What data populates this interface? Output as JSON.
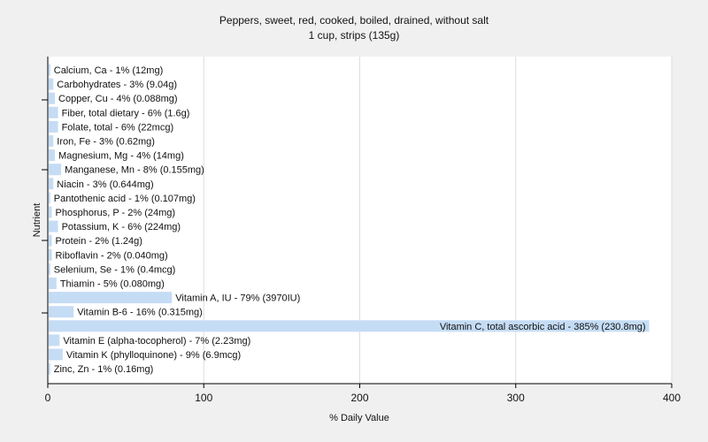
{
  "chart_data": {
    "type": "bar",
    "orientation": "horizontal",
    "title": "Peppers, sweet, red, cooked, boiled, drained, without salt",
    "subtitle": "1 cup, strips (135g)",
    "xlabel": "% Daily Value",
    "ylabel": "Nutrient",
    "xlim": [
      0,
      400
    ],
    "xticks": [
      0,
      100,
      200,
      300,
      400
    ],
    "grid": true,
    "bar_color": "#c5dcf5",
    "background": "#f0f0f0",
    "plot_background": "#ffffff",
    "categories": [
      "Calcium, Ca - 1% (12mg)",
      "Carbohydrates - 3% (9.04g)",
      "Copper, Cu - 4% (0.088mg)",
      "Fiber, total dietary - 6% (1.6g)",
      "Folate, total - 6% (22mcg)",
      "Iron, Fe - 3% (0.62mg)",
      "Magnesium, Mg - 4% (14mg)",
      "Manganese, Mn - 8% (0.155mg)",
      "Niacin - 3% (0.644mg)",
      "Pantothenic acid - 1% (0.107mg)",
      "Phosphorus, P - 2% (24mg)",
      "Potassium, K - 6% (224mg)",
      "Protein - 2% (1.24g)",
      "Riboflavin - 2% (0.040mg)",
      "Selenium, Se - 1% (0.4mcg)",
      "Thiamin - 5% (0.080mg)",
      "Vitamin A, IU - 79% (3970IU)",
      "Vitamin B-6 - 16% (0.315mg)",
      "Vitamin C, total ascorbic acid - 385% (230.8mg)",
      "Vitamin E (alpha-tocopherol) - 7% (2.23mg)",
      "Vitamin K (phylloquinone) - 9% (6.9mcg)",
      "Zinc, Zn - 1% (0.16mg)"
    ],
    "values": [
      1,
      3,
      4,
      6,
      6,
      3,
      4,
      8,
      3,
      1,
      2,
      6,
      2,
      2,
      1,
      5,
      79,
      16,
      385,
      7,
      9,
      1
    ]
  }
}
